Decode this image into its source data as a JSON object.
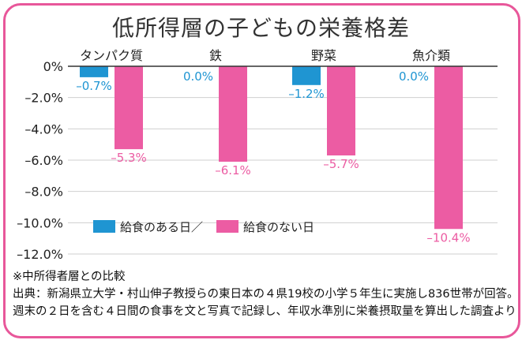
{
  "chart_data": {
    "type": "bar",
    "title": "低所得層の子どもの栄養格差",
    "categories": [
      "タンパク質",
      "鉄",
      "野菜",
      "魚介類"
    ],
    "series": [
      {
        "name": "給食のある日",
        "color": "#1f95d2",
        "values": [
          -0.7,
          0.0,
          -1.2,
          0.0
        ],
        "labels": [
          "–0.7%",
          "0.0%",
          "–1.2%",
          "0.0%"
        ]
      },
      {
        "name": "給食のない日",
        "color": "#ec5ca3",
        "values": [
          -5.3,
          -6.1,
          -5.7,
          -10.4
        ],
        "labels": [
          "–5.3%",
          "–6.1%",
          "–5.7%",
          "–10.4%"
        ]
      }
    ],
    "yticks": [
      "0%",
      "–2.0%",
      "–4.0%",
      "–6.0%",
      "–8.0%",
      "–10.0%",
      "–12.0%"
    ],
    "ylim": [
      -12,
      0
    ],
    "legend_separator": "／",
    "legend_position": "lower-left",
    "grid": true
  },
  "notes": {
    "note1": "※中所得者層との比較",
    "note2": "出典：新潟県立大学・村山伸子教授らの東日本の４県19校の小学５年生に実施し836世帯が回答。",
    "note3": "週末の２日を含む４日間の食事を文と写真で記録し、年収水準別に栄養摂取量を算出した調査より"
  },
  "colors": {
    "frame": "#e8579a",
    "grid": "#cfcfcf"
  }
}
